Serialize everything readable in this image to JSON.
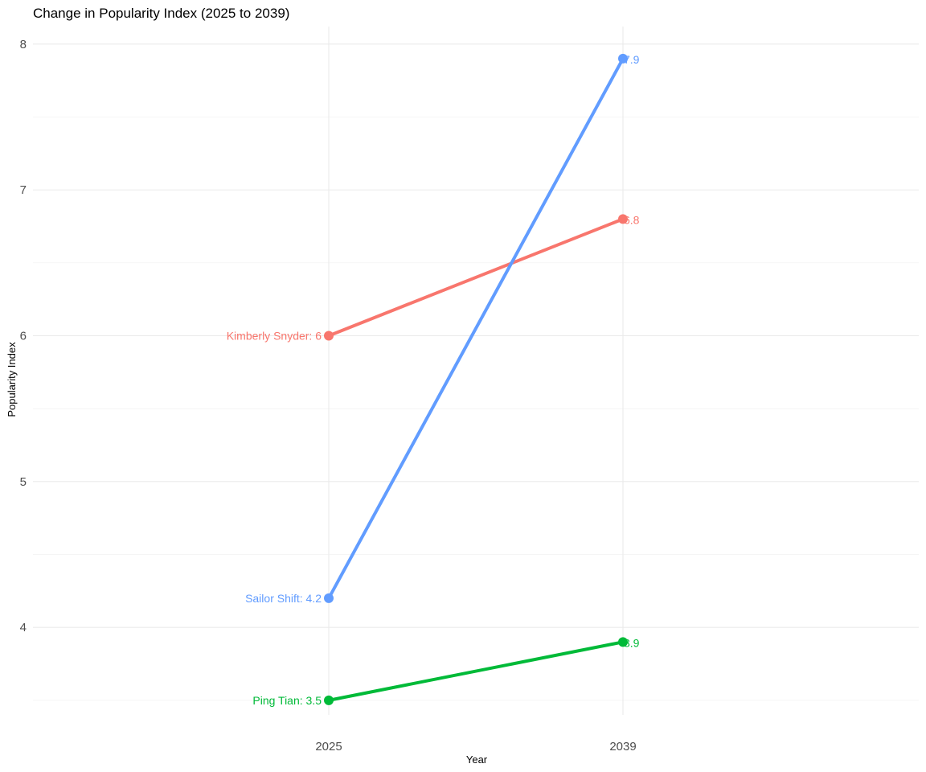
{
  "chart_data": {
    "type": "line",
    "title": "Change in Popularity Index (2025 to 2039)",
    "xlabel": "Year",
    "ylabel": "Popularity Index",
    "categories": [
      "2025",
      "2039"
    ],
    "ylim": [
      3.4,
      8.12
    ],
    "yticks": [
      "4",
      "5",
      "6",
      "7",
      "8"
    ],
    "grid": true,
    "legend": "none",
    "series": [
      {
        "name": "Kimberly Snyder",
        "values": [
          6,
          6.8
        ],
        "color": "#F8766D",
        "labels": [
          "Kimberly Snyder: 6",
          "6.8"
        ]
      },
      {
        "name": "Ping Tian",
        "values": [
          3.5,
          3.9
        ],
        "color": "#00BA38",
        "labels": [
          "Ping Tian: 3.5",
          "3.9"
        ]
      },
      {
        "name": "Sailor Shift",
        "values": [
          4.2,
          7.9
        ],
        "color": "#619CFF",
        "labels": [
          "Sailor Shift: 4.2",
          "7.9"
        ]
      }
    ]
  }
}
